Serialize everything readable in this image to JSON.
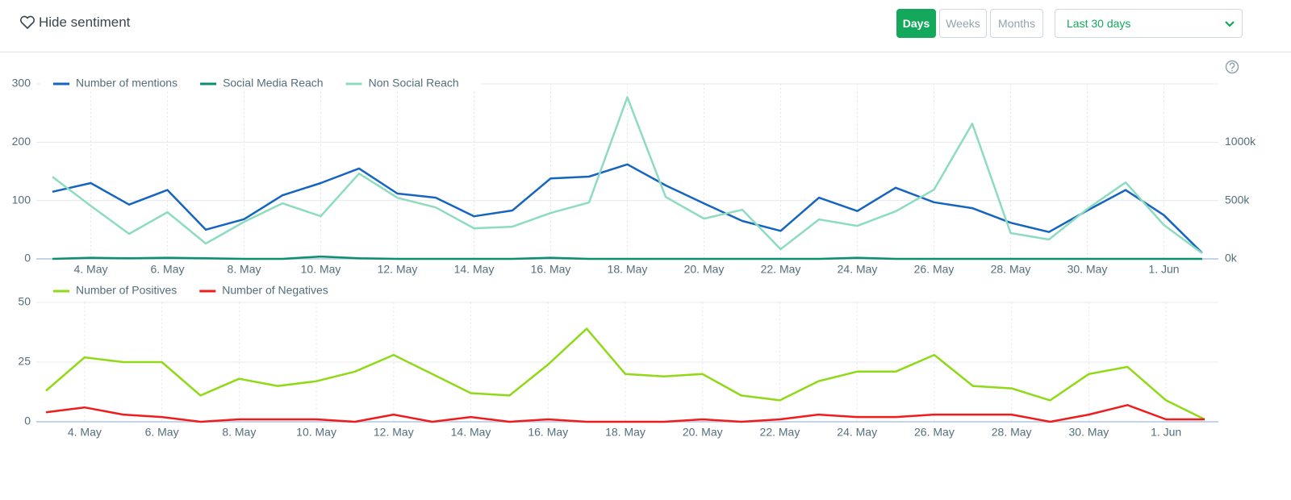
{
  "toolbar": {
    "sentiment_toggle": "Hide sentiment",
    "periods": [
      "Days",
      "Weeks",
      "Months"
    ],
    "range": "Last 30 days"
  },
  "chart_data": [
    {
      "type": "line",
      "categories": [
        null,
        "4. May",
        null,
        "6. May",
        null,
        "8. May",
        null,
        "10. May",
        null,
        "12. May",
        null,
        "14. May",
        null,
        "16. May",
        null,
        "18. May",
        null,
        "20. May",
        null,
        "22. May",
        null,
        "24. May",
        null,
        "26. May",
        null,
        "28. May",
        null,
        "30. May",
        null,
        "1. Jun",
        null
      ],
      "series": [
        {
          "name": "Number of mentions",
          "color": "#1565c0",
          "values": [
            115,
            130,
            93,
            118,
            50,
            68,
            109,
            130,
            155,
            112,
            105,
            73,
            83,
            138,
            141,
            162,
            126,
            95,
            65,
            48,
            105,
            82,
            122,
            97,
            87,
            62,
            46,
            83,
            118,
            75,
            10
          ]
        },
        {
          "name": "Social Media Reach",
          "color": "#0b8f6e",
          "axis": "y2",
          "values": [
            0,
            10000,
            5000,
            10000,
            5000,
            0,
            0,
            20000,
            5000,
            0,
            0,
            0,
            0,
            10000,
            0,
            0,
            0,
            0,
            0,
            0,
            0,
            10000,
            0,
            0,
            0,
            0,
            0,
            0,
            0,
            0,
            0
          ]
        },
        {
          "name": "Non Social Reach",
          "color": "#8ddcc0",
          "axis": "y2",
          "values": [
            703000,
            455000,
            214000,
            400000,
            131000,
            317000,
            476000,
            366000,
            731000,
            524000,
            441000,
            262000,
            276000,
            393000,
            483000,
            1386000,
            531000,
            345000,
            421000,
            83000,
            338000,
            283000,
            407000,
            593000,
            1159000,
            221000,
            166000,
            428000,
            655000,
            290000,
            48000
          ]
        }
      ],
      "ylim": [
        0,
        300
      ],
      "yticks": [
        0,
        100,
        200,
        300
      ],
      "y2lim": [
        0,
        1500000
      ],
      "y2ticks": [
        {
          "value": 0,
          "label": "0k"
        },
        {
          "value": 500000,
          "label": "500k"
        },
        {
          "value": 1000000,
          "label": "1000k"
        }
      ],
      "grid": true
    },
    {
      "type": "line",
      "categories": [
        null,
        "4. May",
        null,
        "6. May",
        null,
        "8. May",
        null,
        "10. May",
        null,
        "12. May",
        null,
        "14. May",
        null,
        "16. May",
        null,
        "18. May",
        null,
        "20. May",
        null,
        "22. May",
        null,
        "24. May",
        null,
        "26. May",
        null,
        "28. May",
        null,
        "30. May",
        null,
        "1. Jun",
        null
      ],
      "series": [
        {
          "name": "Number of Positives",
          "color": "#8fd916",
          "values": [
            13,
            27,
            25,
            25,
            11,
            18,
            15,
            17,
            21,
            28,
            20,
            12,
            11,
            24,
            39,
            20,
            19,
            20,
            11,
            9,
            17,
            21,
            21,
            28,
            15,
            14,
            9,
            20,
            23,
            9,
            1
          ]
        },
        {
          "name": "Number of Negatives",
          "color": "#f01c1c",
          "values": [
            4,
            6,
            3,
            2,
            0,
            1,
            1,
            1,
            0,
            3,
            0,
            2,
            0,
            1,
            0,
            0,
            0,
            1,
            0,
            1,
            3,
            2,
            2,
            3,
            3,
            3,
            0,
            3,
            7,
            1,
            1
          ]
        }
      ],
      "ylim": [
        0,
        50
      ],
      "yticks": [
        0,
        25,
        50
      ],
      "grid": true
    }
  ]
}
